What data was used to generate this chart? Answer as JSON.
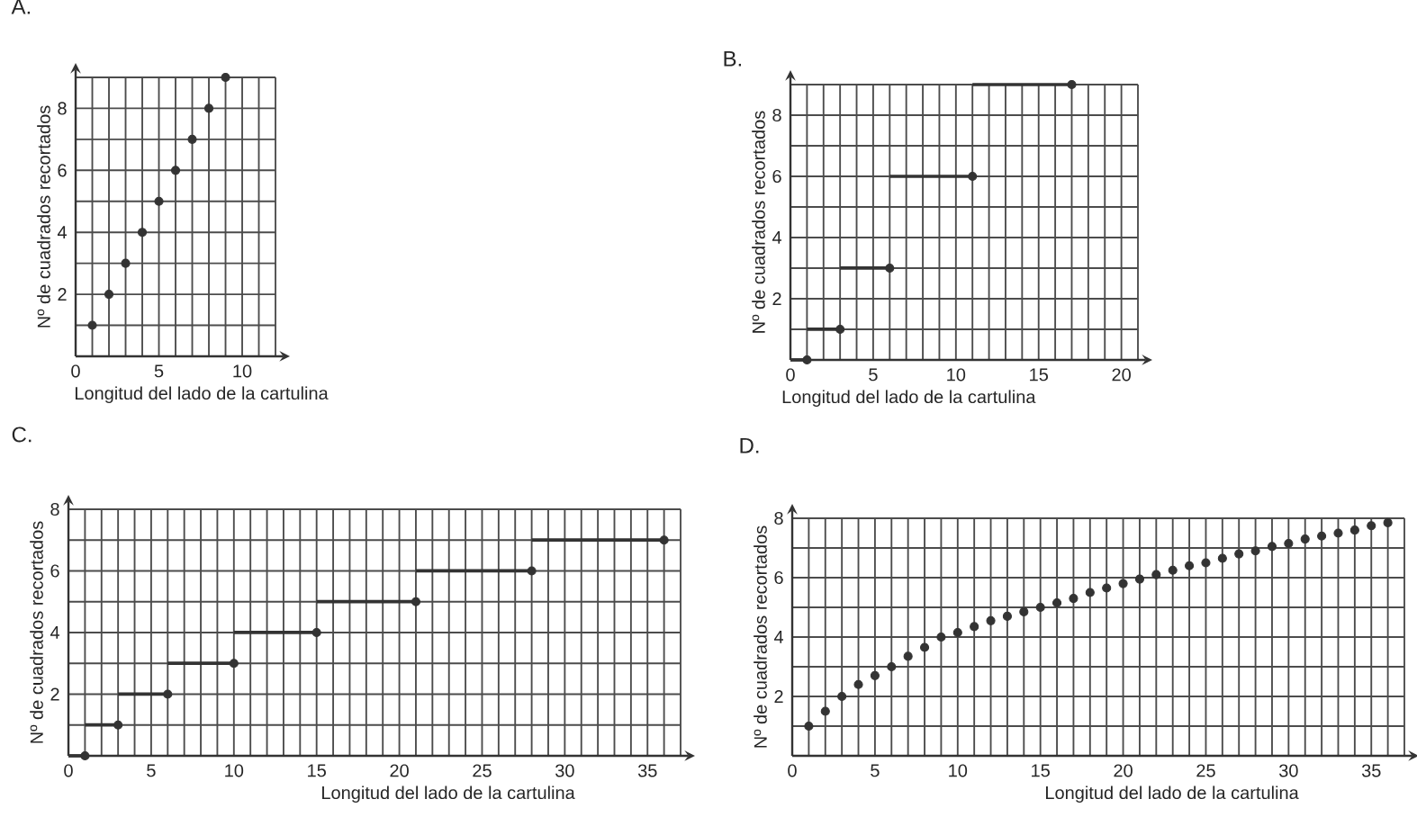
{
  "chart_data": [
    {
      "type": "scatter",
      "title": "A.",
      "xlabel": "Longitud del lado de la cartulina",
      "ylabel": "Nº de cuadrados recortados",
      "color": "#333333",
      "grid": true,
      "x": [
        1,
        2,
        3,
        4,
        5,
        6,
        7,
        8,
        9
      ],
      "values": [
        1,
        2,
        3,
        4,
        5,
        6,
        7,
        8,
        9
      ],
      "xlim": [
        0,
        12
      ],
      "ylim": [
        0,
        9
      ],
      "xticks": [
        0,
        {
          "value": 1,
          "label": null
        },
        {
          "value": 2,
          "label": null
        },
        {
          "value": 3,
          "label": null
        },
        {
          "value": 4,
          "label": null
        },
        5,
        {
          "value": 6,
          "label": null
        },
        {
          "value": 7,
          "label": null
        },
        {
          "value": 8,
          "label": null
        },
        {
          "value": 9,
          "label": null
        },
        10,
        {
          "value": 11,
          "label": null
        },
        {
          "value": 12,
          "label": null
        }
      ],
      "yticks": [
        {
          "value": 0,
          "label": null
        },
        {
          "value": 1,
          "label": null
        },
        2,
        {
          "value": 3,
          "label": null
        },
        4,
        {
          "value": 5,
          "label": null
        },
        6,
        {
          "value": 7,
          "label": null
        },
        8,
        {
          "value": 9,
          "label": null
        }
      ]
    },
    {
      "type": "line",
      "title": "B.",
      "xlabel": "Longitud del lado de la cartulina",
      "ylabel": "Nº de cuadrados recortados",
      "color": "#333333",
      "grid": true,
      "series": [
        {
          "type": "scatter",
          "x": [
            1,
            3,
            6,
            11,
            17
          ],
          "values": [
            0,
            1,
            3,
            6,
            9
          ]
        },
        {
          "x": [
            0,
            1
          ],
          "values": [
            0,
            0
          ]
        },
        {
          "x": [
            1,
            3
          ],
          "values": [
            1,
            1
          ]
        },
        {
          "x": [
            3,
            6
          ],
          "values": [
            3,
            3
          ]
        },
        {
          "x": [
            6,
            11
          ],
          "values": [
            6,
            6
          ]
        },
        {
          "x": [
            11,
            17
          ],
          "values": [
            9,
            9
          ]
        }
      ],
      "xlim": [
        0,
        21
      ],
      "ylim": [
        0,
        9
      ],
      "xticks": [
        0,
        {
          "value": 1,
          "label": null
        },
        {
          "value": 2,
          "label": null
        },
        {
          "value": 3,
          "label": null
        },
        {
          "value": 4,
          "label": null
        },
        5,
        {
          "value": 6,
          "label": null
        },
        {
          "value": 7,
          "label": null
        },
        {
          "value": 8,
          "label": null
        },
        {
          "value": 9,
          "label": null
        },
        10,
        {
          "value": 11,
          "label": null
        },
        {
          "value": 12,
          "label": null
        },
        {
          "value": 13,
          "label": null
        },
        {
          "value": 14,
          "label": null
        },
        15,
        {
          "value": 16,
          "label": null
        },
        {
          "value": 17,
          "label": null
        },
        {
          "value": 18,
          "label": null
        },
        {
          "value": 19,
          "label": null
        },
        20,
        {
          "value": 21,
          "label": null
        }
      ],
      "yticks": [
        {
          "value": 0,
          "label": null
        },
        {
          "value": 1,
          "label": null
        },
        2,
        {
          "value": 3,
          "label": null
        },
        4,
        {
          "value": 5,
          "label": null
        },
        6,
        {
          "value": 7,
          "label": null
        },
        8,
        {
          "value": 9,
          "label": null
        }
      ]
    },
    {
      "type": "line",
      "title": "C.",
      "xlabel": "Longitud del lado de la cartulina",
      "ylabel": "Nº de cuadrados recortados",
      "color": "#333333",
      "grid": true,
      "series": [
        {
          "type": "scatter",
          "x": [
            1,
            3,
            6,
            10,
            15,
            21,
            28,
            36
          ],
          "values": [
            0,
            1,
            2,
            3,
            4,
            5,
            6,
            7
          ]
        },
        {
          "x": [
            0,
            1
          ],
          "values": [
            0,
            0
          ]
        },
        {
          "x": [
            1,
            3
          ],
          "values": [
            1,
            1
          ]
        },
        {
          "x": [
            3,
            6
          ],
          "values": [
            2,
            2
          ]
        },
        {
          "x": [
            6,
            10
          ],
          "values": [
            3,
            3
          ]
        },
        {
          "x": [
            10,
            15
          ],
          "values": [
            4,
            4
          ]
        },
        {
          "x": [
            15,
            21
          ],
          "values": [
            5,
            5
          ]
        },
        {
          "x": [
            21,
            28
          ],
          "values": [
            6,
            6
          ]
        },
        {
          "x": [
            28,
            36
          ],
          "values": [
            7,
            7
          ]
        }
      ],
      "xlim": [
        0,
        37
      ],
      "ylim": [
        0,
        8
      ],
      "xticks": [
        0,
        {
          "value": 1,
          "label": null
        },
        {
          "value": 2,
          "label": null
        },
        {
          "value": 3,
          "label": null
        },
        {
          "value": 4,
          "label": null
        },
        5,
        {
          "value": 6,
          "label": null
        },
        {
          "value": 7,
          "label": null
        },
        {
          "value": 8,
          "label": null
        },
        {
          "value": 9,
          "label": null
        },
        10,
        {
          "value": 11,
          "label": null
        },
        {
          "value": 12,
          "label": null
        },
        {
          "value": 13,
          "label": null
        },
        {
          "value": 14,
          "label": null
        },
        15,
        {
          "value": 16,
          "label": null
        },
        {
          "value": 17,
          "label": null
        },
        {
          "value": 18,
          "label": null
        },
        {
          "value": 19,
          "label": null
        },
        20,
        {
          "value": 21,
          "label": null
        },
        {
          "value": 22,
          "label": null
        },
        {
          "value": 23,
          "label": null
        },
        {
          "value": 24,
          "label": null
        },
        25,
        {
          "value": 26,
          "label": null
        },
        {
          "value": 27,
          "label": null
        },
        {
          "value": 28,
          "label": null
        },
        {
          "value": 29,
          "label": null
        },
        30,
        {
          "value": 31,
          "label": null
        },
        {
          "value": 32,
          "label": null
        },
        {
          "value": 33,
          "label": null
        },
        {
          "value": 34,
          "label": null
        },
        35,
        {
          "value": 36,
          "label": null
        },
        {
          "value": 37,
          "label": null
        }
      ],
      "yticks": [
        {
          "value": 0,
          "label": null
        },
        {
          "value": 1,
          "label": null
        },
        2,
        {
          "value": 3,
          "label": null
        },
        4,
        {
          "value": 5,
          "label": null
        },
        6,
        {
          "value": 7,
          "label": null
        },
        8
      ]
    },
    {
      "type": "scatter",
      "title": "D.",
      "xlabel": "Longitud del lado de la cartulina",
      "ylabel": "Nº de cuadrados recortados",
      "color": "#333333",
      "grid": true,
      "x": [
        1,
        2,
        3,
        4,
        5,
        6,
        7,
        8,
        9,
        10,
        11,
        12,
        13,
        14,
        15,
        16,
        17,
        18,
        19,
        20,
        21,
        22,
        23,
        24,
        25,
        26,
        27,
        28,
        29,
        30,
        31,
        32,
        33,
        34,
        35,
        36
      ],
      "values": [
        1,
        1.5,
        2,
        2.4,
        2.7,
        3,
        3.35,
        3.65,
        4,
        4.15,
        4.35,
        4.55,
        4.7,
        4.85,
        5,
        5.15,
        5.3,
        5.5,
        5.65,
        5.8,
        5.95,
        6.1,
        6.25,
        6.4,
        6.5,
        6.65,
        6.8,
        6.9,
        7.05,
        7.15,
        7.3,
        7.4,
        7.5,
        7.6,
        7.75,
        7.85
      ],
      "xlim": [
        0,
        37
      ],
      "ylim": [
        0,
        8
      ],
      "xticks": [
        0,
        {
          "value": 1,
          "label": null
        },
        {
          "value": 2,
          "label": null
        },
        {
          "value": 3,
          "label": null
        },
        {
          "value": 4,
          "label": null
        },
        5,
        {
          "value": 6,
          "label": null
        },
        {
          "value": 7,
          "label": null
        },
        {
          "value": 8,
          "label": null
        },
        {
          "value": 9,
          "label": null
        },
        10,
        {
          "value": 11,
          "label": null
        },
        {
          "value": 12,
          "label": null
        },
        {
          "value": 13,
          "label": null
        },
        {
          "value": 14,
          "label": null
        },
        15,
        {
          "value": 16,
          "label": null
        },
        {
          "value": 17,
          "label": null
        },
        {
          "value": 18,
          "label": null
        },
        {
          "value": 19,
          "label": null
        },
        20,
        {
          "value": 21,
          "label": null
        },
        {
          "value": 22,
          "label": null
        },
        {
          "value": 23,
          "label": null
        },
        {
          "value": 24,
          "label": null
        },
        25,
        {
          "value": 26,
          "label": null
        },
        {
          "value": 27,
          "label": null
        },
        {
          "value": 28,
          "label": null
        },
        {
          "value": 29,
          "label": null
        },
        30,
        {
          "value": 31,
          "label": null
        },
        {
          "value": 32,
          "label": null
        },
        {
          "value": 33,
          "label": null
        },
        {
          "value": 34,
          "label": null
        },
        35,
        {
          "value": 36,
          "label": null
        },
        {
          "value": 37,
          "label": null
        }
      ],
      "yticks": [
        {
          "value": 0,
          "label": null
        },
        {
          "value": 1,
          "label": null
        },
        2,
        {
          "value": 3,
          "label": null
        },
        4,
        {
          "value": 5,
          "label": null
        },
        6,
        {
          "value": 7,
          "label": null
        },
        8
      ]
    }
  ]
}
